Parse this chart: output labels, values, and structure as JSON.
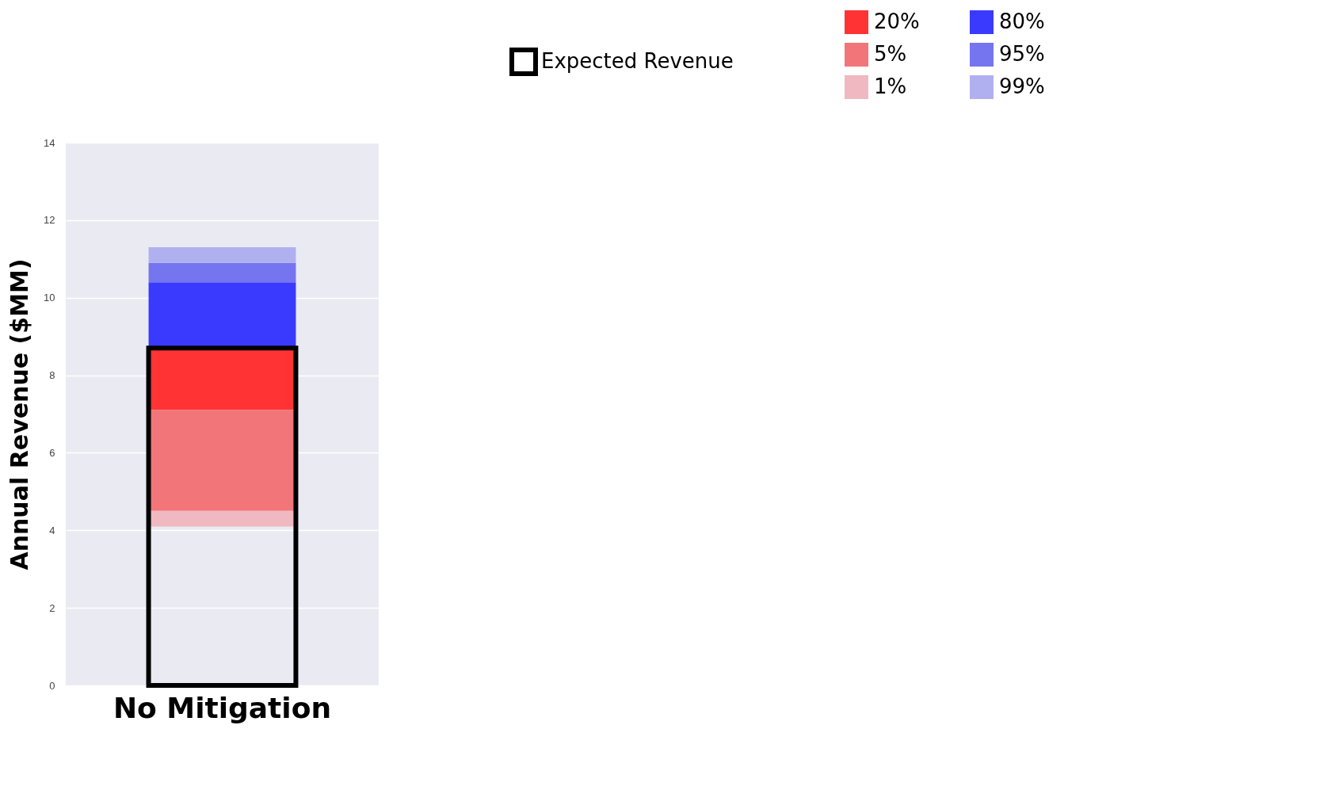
{
  "chart_data": {
    "type": "bar",
    "ylabel": "Annual Revenue ($MM)",
    "categories": [
      "No Mitigation"
    ],
    "series": [
      {
        "name": "20%",
        "color": "#ff3333",
        "base": [
          7.1
        ],
        "values": [
          1.6
        ]
      },
      {
        "name": "5%",
        "color": "#f27579",
        "base": [
          4.5
        ],
        "values": [
          2.6
        ]
      },
      {
        "name": "1%",
        "color": "#f0b8c0",
        "base": [
          4.1
        ],
        "values": [
          0.4
        ]
      },
      {
        "name": "80%",
        "color": "#3a3aff",
        "base": [
          8.7
        ],
        "values": [
          1.7
        ]
      },
      {
        "name": "95%",
        "color": "#7575f0",
        "base": [
          10.4
        ],
        "values": [
          0.5
        ]
      },
      {
        "name": "99%",
        "color": "#b0b0f0",
        "base": [
          10.9
        ],
        "values": [
          0.4
        ]
      },
      {
        "name": "Expected Revenue",
        "color": "#000000",
        "values": [
          8.7
        ]
      }
    ],
    "ylim": [
      0,
      14
    ],
    "yticks": [
      0,
      2,
      4,
      6,
      8,
      10,
      12,
      14
    ],
    "grid": "y",
    "legend": "top right"
  }
}
